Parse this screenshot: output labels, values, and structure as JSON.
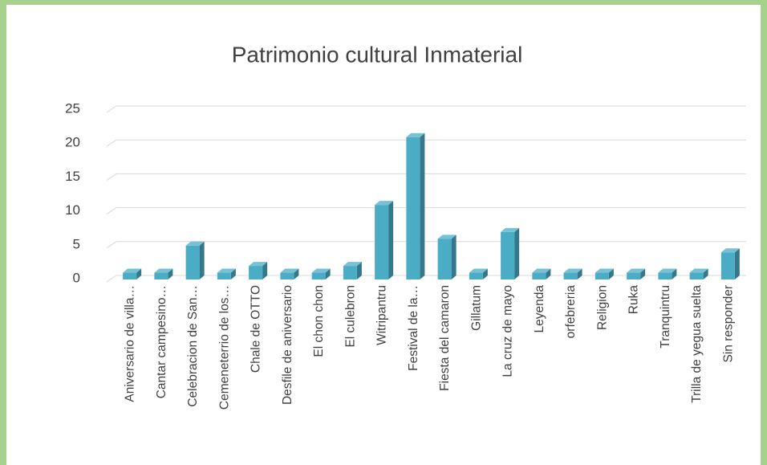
{
  "chart_data": {
    "type": "bar",
    "title": "Patrimonio cultural Inmaterial",
    "categories": [
      "Aniversario de villa…",
      "Cantar campesino…",
      "Celebracion de San…",
      "Cemeneterrio de los…",
      "Chale de OTTO",
      "Desfile de aniversario",
      "El chon chon",
      "El culebron",
      "Witripantru",
      "Festival de la…",
      "Fiesta del camaron",
      "Gillatum",
      "La cruz de mayo",
      "Leyenda",
      "orfebreria",
      "Religion",
      "Ruka",
      "Tranquintru",
      "Trilla de yegua suelta",
      "Sin responder"
    ],
    "values": [
      1,
      1,
      5,
      1,
      2,
      1,
      1,
      2,
      11,
      21,
      6,
      1,
      7,
      1,
      1,
      1,
      1,
      1,
      1,
      4
    ],
    "color": "#4bacc6",
    "ylim": [
      0,
      25
    ],
    "yticks": [
      0,
      5,
      10,
      15,
      20,
      25
    ],
    "grid": true
  }
}
